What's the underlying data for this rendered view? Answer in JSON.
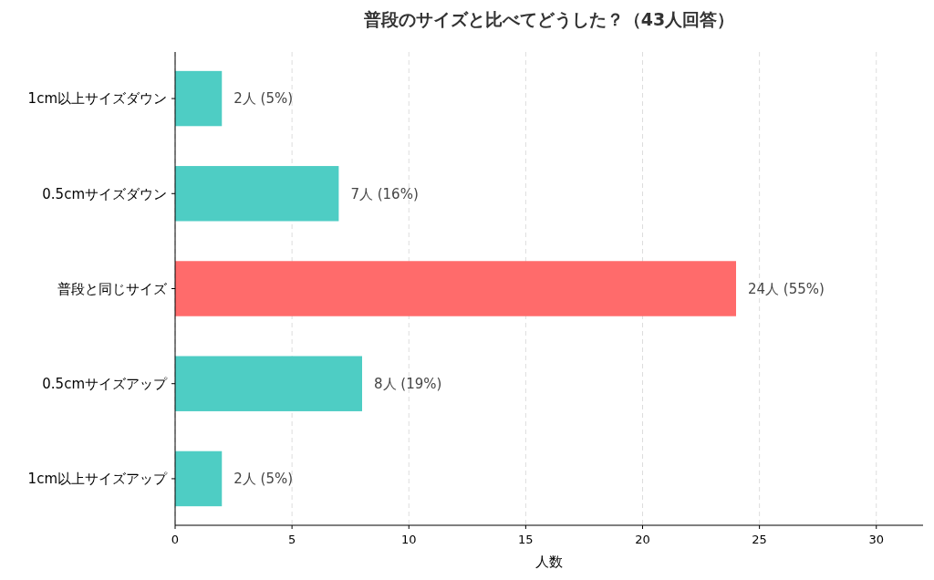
{
  "chart_data": {
    "type": "bar",
    "orientation": "horizontal",
    "title": "普段のサイズと比べてどうした？（43人回答）",
    "xlabel": "人数",
    "categories": [
      "1cm以上サイズダウン",
      "0.5cmサイズダウン",
      "普段と同じサイズ",
      "0.5cmサイズアップ",
      "1cm以上サイズアップ"
    ],
    "values": [
      2,
      7,
      24,
      8,
      2
    ],
    "colors": [
      "#4ecdc4",
      "#4ecdc4",
      "#ff6b6b",
      "#4ecdc4",
      "#4ecdc4"
    ],
    "value_labels": [
      "2人 (5%)",
      "7人 (16%)",
      "24人 (55%)",
      "8人 (19%)",
      "2人 (5%)"
    ],
    "xlim": [
      0,
      32
    ],
    "xticks": [
      0,
      5,
      10,
      15,
      20,
      25,
      30
    ],
    "grid": "x"
  }
}
